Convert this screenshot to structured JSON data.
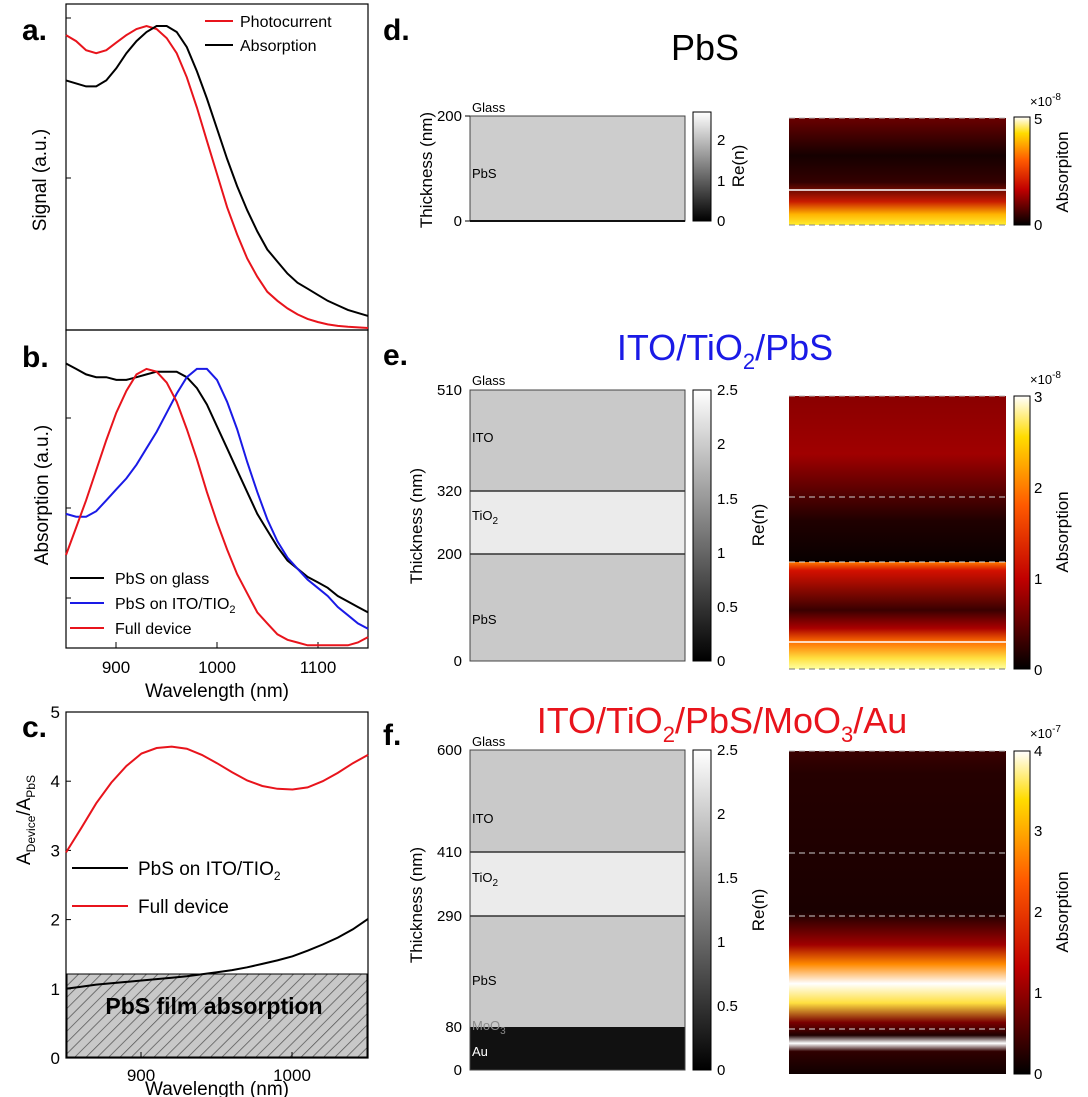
{
  "panels": {
    "a": {
      "letter": "a.",
      "ylabel": "Signal (a.u.)",
      "legend": [
        "Photocurrent",
        "Absorption"
      ]
    },
    "b": {
      "letter": "b.",
      "ylabel": "Absorption (a.u.)",
      "xlabel": "Wavelength (nm)",
      "xticks": [
        "900",
        "1000",
        "1100"
      ],
      "legend": [
        "PbS on glass",
        "PbS on ITO/TIO",
        "Full device"
      ],
      "legend_sub": "2"
    },
    "c": {
      "letter": "c.",
      "ylabel_main_a": "A",
      "ylabel_sub_a": "Device",
      "ylabel_slash": "/A",
      "ylabel_sub_b": "PbS",
      "xlabel": "Wavelength (nm)",
      "xticks": [
        "900",
        "1000"
      ],
      "yticks": [
        "0",
        "1",
        "2",
        "3",
        "4",
        "5"
      ],
      "legend": [
        "PbS on ITO/TIO",
        "Full device"
      ],
      "legend_sub": "2",
      "band_label": "PbS film absorption"
    },
    "d": {
      "letter": "d.",
      "title": "PbS",
      "ylabel": "Thickness (nm)",
      "yticks": [
        "0",
        "200"
      ],
      "layers": [
        "Glass",
        "PbS"
      ],
      "cbar_label": "Re(n)",
      "cbar_ticks": [
        "0",
        "1",
        "2"
      ],
      "abs_label": "Absorpiton",
      "abs_ticks": [
        "0",
        "5"
      ],
      "abs_exp_base": "×10",
      "abs_exp": "-8"
    },
    "e": {
      "letter": "e.",
      "title_parts": [
        "ITO/TiO",
        "2",
        "/PbS"
      ],
      "ylabel": "Thickness (nm)",
      "yticks": [
        "0",
        "200",
        "320",
        "510"
      ],
      "layers": [
        "Glass",
        "ITO",
        "TiO",
        "2",
        "PbS"
      ],
      "cbar_label": "Re(n)",
      "cbar_ticks": [
        "0",
        "0.5",
        "1",
        "1.5",
        "2",
        "2.5"
      ],
      "abs_label": "Absorption",
      "abs_ticks": [
        "0",
        "1",
        "2",
        "3"
      ],
      "abs_exp_base": "×10",
      "abs_exp": "-8"
    },
    "f": {
      "letter": "f.",
      "title_parts": [
        "ITO/TiO",
        "2",
        "/PbS/MoO",
        "3",
        "/Au"
      ],
      "ylabel": "Thickness (nm)",
      "yticks": [
        "0",
        "80",
        "290",
        "410",
        "600"
      ],
      "layers": [
        "Glass",
        "ITO",
        "TiO",
        "2",
        "PbS",
        "MoO",
        "3",
        "Au"
      ],
      "cbar_label": "Re(n)",
      "cbar_ticks": [
        "0",
        "0.5",
        "1",
        "1.5",
        "2",
        "2.5"
      ],
      "abs_label": "Absorption",
      "abs_ticks": [
        "0",
        "1",
        "2",
        "3",
        "4"
      ],
      "abs_exp_base": "×10",
      "abs_exp": "-7"
    }
  },
  "colors": {
    "red": "#e8141c",
    "black": "#000000",
    "blue": "#1a1ae6"
  },
  "chart_data": [
    {
      "panel": "a",
      "type": "line",
      "xlim": [
        850,
        1150
      ],
      "series": [
        {
          "name": "Photocurrent",
          "color": "#e8141c",
          "x": [
            850,
            860,
            870,
            880,
            890,
            900,
            910,
            920,
            930,
            940,
            950,
            960,
            970,
            980,
            990,
            1000,
            1010,
            1020,
            1030,
            1040,
            1050,
            1060,
            1070,
            1080,
            1090,
            1100,
            1110,
            1120,
            1130,
            1140,
            1150
          ],
          "y": [
            0.97,
            0.95,
            0.92,
            0.91,
            0.92,
            0.945,
            0.97,
            0.99,
            1.0,
            0.99,
            0.96,
            0.91,
            0.83,
            0.73,
            0.62,
            0.51,
            0.4,
            0.31,
            0.23,
            0.17,
            0.12,
            0.09,
            0.065,
            0.045,
            0.03,
            0.02,
            0.012,
            0.007,
            0.004,
            0.002,
            0.0
          ]
        },
        {
          "name": "Absorption",
          "color": "#000000",
          "x": [
            850,
            860,
            870,
            880,
            890,
            900,
            910,
            920,
            930,
            940,
            950,
            960,
            970,
            980,
            990,
            1000,
            1010,
            1020,
            1030,
            1040,
            1050,
            1060,
            1070,
            1080,
            1090,
            1100,
            1110,
            1120,
            1130,
            1140,
            1150
          ],
          "y": [
            0.82,
            0.81,
            0.8,
            0.8,
            0.82,
            0.86,
            0.91,
            0.95,
            0.98,
            1.0,
            1.0,
            0.98,
            0.93,
            0.85,
            0.76,
            0.66,
            0.56,
            0.47,
            0.39,
            0.32,
            0.26,
            0.22,
            0.18,
            0.15,
            0.13,
            0.11,
            0.09,
            0.075,
            0.06,
            0.05,
            0.04
          ]
        }
      ]
    },
    {
      "panel": "b",
      "type": "line",
      "xlim": [
        850,
        1150
      ],
      "series": [
        {
          "name": "PbS on glass",
          "color": "#000000",
          "x": [
            850,
            860,
            870,
            880,
            890,
            900,
            910,
            920,
            930,
            940,
            950,
            960,
            970,
            980,
            990,
            1000,
            1010,
            1020,
            1030,
            1040,
            1050,
            1060,
            1070,
            1080,
            1090,
            1100,
            1110,
            1120,
            1130,
            1140,
            1150
          ],
          "y": [
            1.02,
            1.0,
            0.98,
            0.97,
            0.97,
            0.96,
            0.96,
            0.97,
            0.98,
            0.99,
            0.99,
            0.99,
            0.97,
            0.93,
            0.87,
            0.79,
            0.71,
            0.63,
            0.55,
            0.47,
            0.41,
            0.35,
            0.3,
            0.27,
            0.24,
            0.22,
            0.2,
            0.17,
            0.15,
            0.13,
            0.11
          ]
        },
        {
          "name": "PbS on ITO/TIO2",
          "color": "#1a1ae6",
          "x": [
            850,
            860,
            870,
            880,
            890,
            900,
            910,
            920,
            930,
            940,
            950,
            960,
            970,
            980,
            990,
            1000,
            1010,
            1020,
            1030,
            1040,
            1050,
            1060,
            1070,
            1080,
            1090,
            1100,
            1110,
            1120,
            1130,
            1140,
            1150
          ],
          "y": [
            0.47,
            0.46,
            0.46,
            0.48,
            0.52,
            0.56,
            0.6,
            0.65,
            0.71,
            0.77,
            0.84,
            0.91,
            0.97,
            1.0,
            1.0,
            0.96,
            0.88,
            0.78,
            0.66,
            0.55,
            0.45,
            0.37,
            0.31,
            0.27,
            0.23,
            0.2,
            0.17,
            0.13,
            0.1,
            0.07,
            0.05
          ]
        },
        {
          "name": "Full device",
          "color": "#e8141c",
          "x": [
            850,
            860,
            870,
            880,
            890,
            900,
            910,
            920,
            930,
            940,
            950,
            960,
            970,
            980,
            990,
            1000,
            1010,
            1020,
            1030,
            1040,
            1050,
            1060,
            1070,
            1080,
            1090,
            1100,
            1110,
            1120,
            1130,
            1140,
            1150
          ],
          "y": [
            0.32,
            0.42,
            0.52,
            0.63,
            0.74,
            0.84,
            0.92,
            0.98,
            1.0,
            0.99,
            0.95,
            0.88,
            0.78,
            0.67,
            0.55,
            0.44,
            0.34,
            0.25,
            0.18,
            0.11,
            0.07,
            0.03,
            0.01,
            0.0,
            -0.01,
            -0.01,
            -0.01,
            -0.01,
            -0.01,
            0.0,
            0.02
          ]
        }
      ]
    },
    {
      "panel": "c",
      "type": "line",
      "xlim": [
        850,
        1050
      ],
      "ylim": [
        0,
        5
      ],
      "series": [
        {
          "name": "PbS on ITO/TIO2",
          "color": "#000000",
          "x": [
            850,
            860,
            870,
            880,
            890,
            900,
            910,
            920,
            930,
            940,
            950,
            960,
            970,
            980,
            990,
            1000,
            1010,
            1020,
            1030,
            1040,
            1050
          ],
          "y": [
            1.0,
            1.03,
            1.06,
            1.08,
            1.1,
            1.12,
            1.14,
            1.16,
            1.18,
            1.21,
            1.24,
            1.27,
            1.31,
            1.36,
            1.41,
            1.47,
            1.55,
            1.64,
            1.74,
            1.86,
            2.01
          ]
        },
        {
          "name": "Full device",
          "color": "#e8141c",
          "x": [
            850,
            860,
            870,
            880,
            890,
            900,
            910,
            920,
            930,
            940,
            950,
            960,
            970,
            980,
            990,
            1000,
            1010,
            1020,
            1030,
            1040,
            1050
          ],
          "y": [
            2.97,
            3.32,
            3.68,
            3.98,
            4.22,
            4.4,
            4.48,
            4.5,
            4.47,
            4.38,
            4.26,
            4.13,
            4.01,
            3.93,
            3.89,
            3.88,
            3.91,
            4.0,
            4.12,
            4.26,
            4.38
          ]
        }
      ]
    }
  ]
}
